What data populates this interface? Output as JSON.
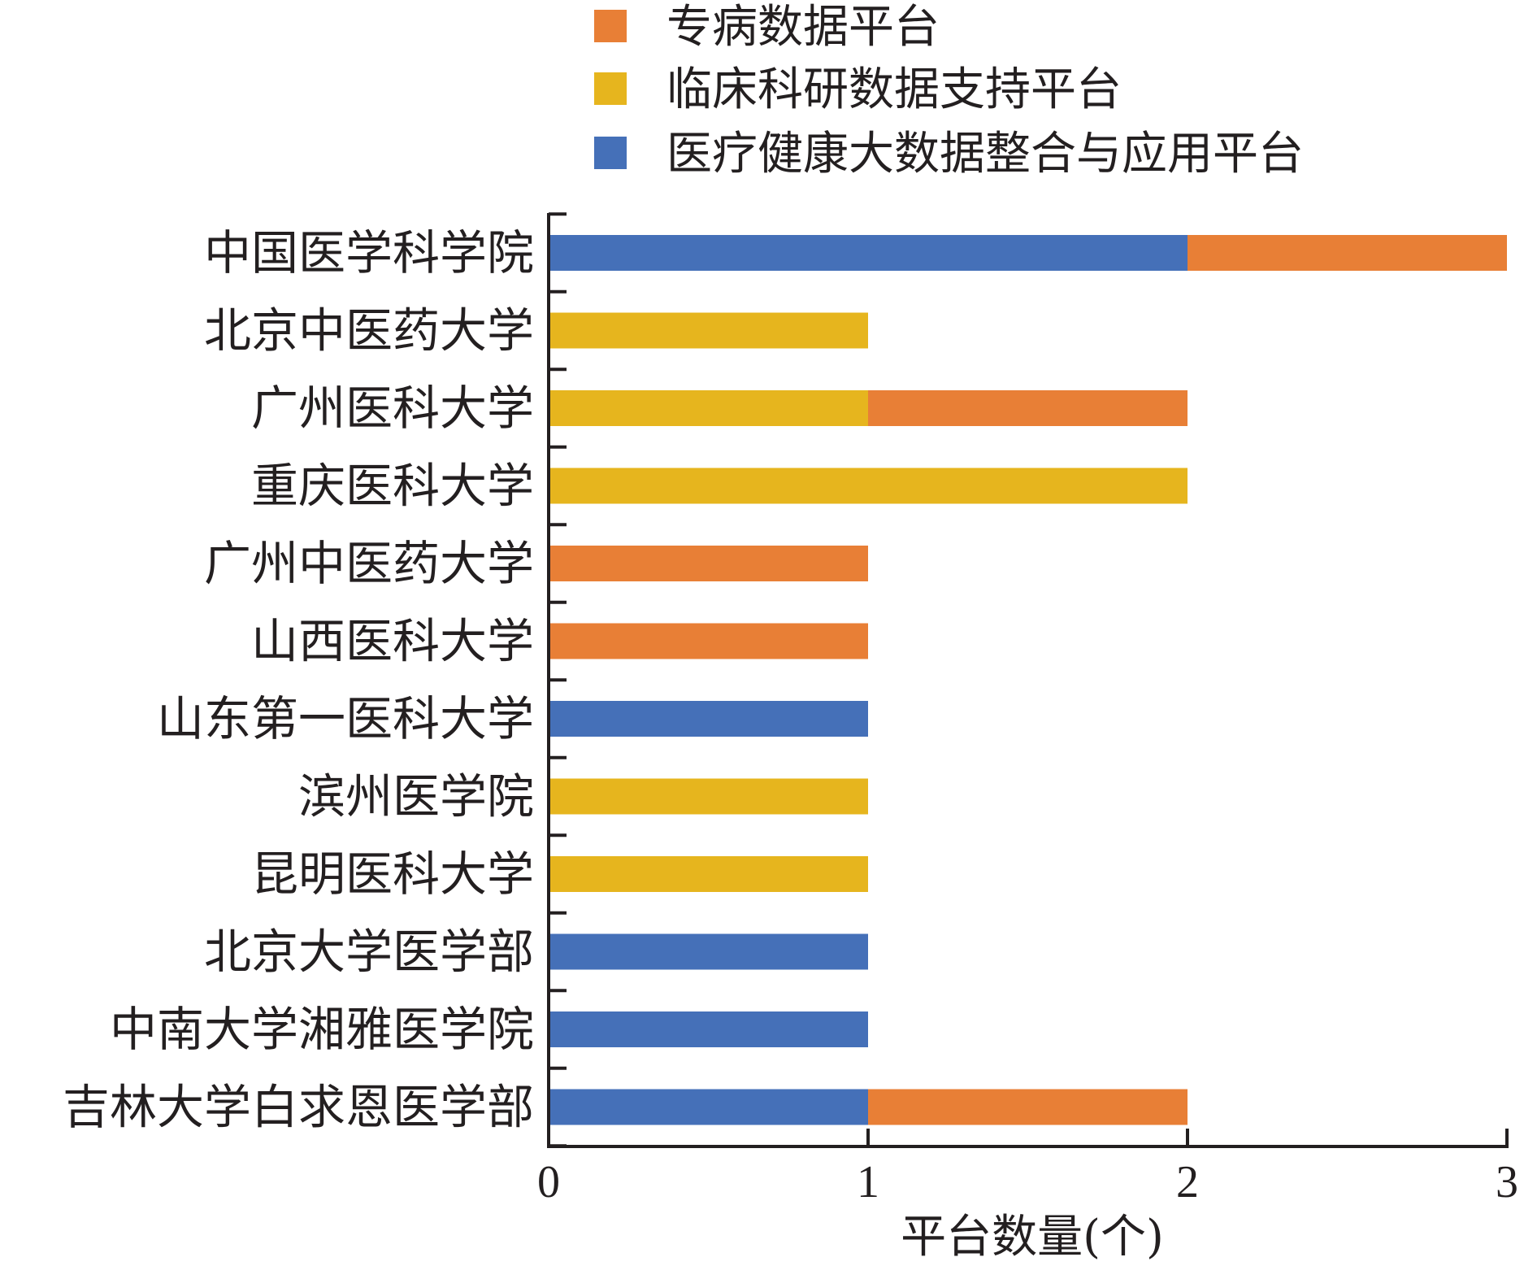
{
  "chart_data": {
    "type": "bar",
    "orientation": "horizontal",
    "stacked": true,
    "categories": [
      "中国医学科学院",
      "北京中医药大学",
      "广州医科大学",
      "重庆医科大学",
      "广州中医药大学",
      "山西医科大学",
      "山东第一医科大学",
      "滨州医学院",
      "昆明医科大学",
      "北京大学医学部",
      "中南大学湘雅医学院",
      "吉林大学白求恩医学部"
    ],
    "series": [
      {
        "name": "医疗健康大数据整合与应用平台",
        "color": "#4570b8",
        "values": [
          2,
          0,
          0,
          0,
          0,
          0,
          1,
          0,
          0,
          1,
          1,
          1
        ]
      },
      {
        "name": "临床科研数据支持平台",
        "color": "#e6b51e",
        "values": [
          0,
          1,
          1,
          2,
          0,
          0,
          0,
          1,
          1,
          0,
          0,
          0
        ]
      },
      {
        "name": "专病数据平台",
        "color": "#e87f36",
        "values": [
          1,
          0,
          1,
          0,
          1,
          1,
          0,
          0,
          0,
          0,
          0,
          1
        ]
      }
    ],
    "legend_order": [
      "专病数据平台",
      "临床科研数据支持平台",
      "医疗健康大数据整合与应用平台"
    ],
    "legend_position": "top",
    "xlabel": "平台数量(个)",
    "ylabel": "",
    "xlim": [
      0,
      3
    ],
    "x_ticks": [
      0,
      1,
      2,
      3
    ],
    "x_tick_labels": [
      "0",
      "1",
      "2",
      "3"
    ],
    "grid": false,
    "axis_color": "#231f20",
    "text_color": "#231f20"
  }
}
